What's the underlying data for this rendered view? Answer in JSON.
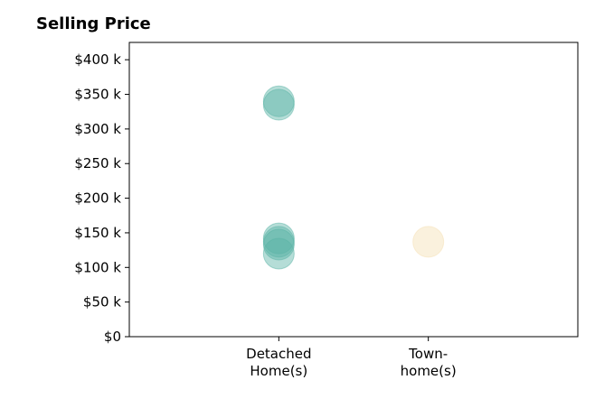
{
  "chart_data": {
    "type": "scatter",
    "title": "Selling Price",
    "xlabel": "",
    "ylabel": "",
    "categories": [
      {
        "lines": [
          "Detached",
          "Home(s)"
        ]
      },
      {
        "lines": [
          "Town-",
          "home(s)"
        ]
      }
    ],
    "y_ticks": [
      {
        "value": 0,
        "label": "$0"
      },
      {
        "value": 50000,
        "label": "$50 k"
      },
      {
        "value": 100000,
        "label": "$100 k"
      },
      {
        "value": 150000,
        "label": "$150 k"
      },
      {
        "value": 200000,
        "label": "$200 k"
      },
      {
        "value": 250000,
        "label": "$250 k"
      },
      {
        "value": 300000,
        "label": "$300 k"
      },
      {
        "value": 350000,
        "label": "$350 k"
      },
      {
        "value": 400000,
        "label": "$400 k"
      }
    ],
    "ylim": [
      0,
      425000
    ],
    "xlim": [
      -1,
      2
    ],
    "grid": false,
    "series": [
      {
        "category_index": 0,
        "color": "#5ab4a6",
        "values": [
          340000,
          335000,
          142000,
          137000,
          133000,
          120000
        ]
      },
      {
        "category_index": 1,
        "color": "#f5dfb3",
        "values": [
          137000
        ]
      }
    ]
  }
}
